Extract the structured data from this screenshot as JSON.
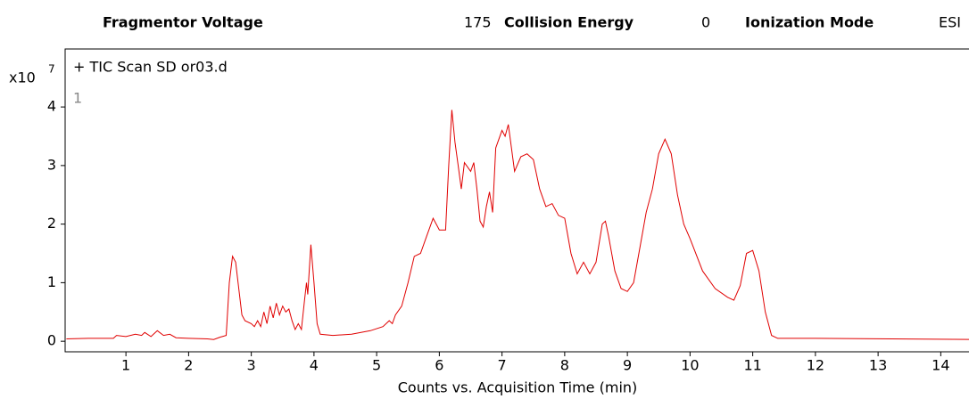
{
  "header": {
    "fields": [
      {
        "label": "Fragmentor Voltage",
        "value": "175"
      },
      {
        "label": "Collision Energy",
        "value": "0"
      },
      {
        "label": "Ionization Mode",
        "value": "ESI"
      }
    ]
  },
  "chart_data": {
    "type": "line",
    "title": "+ TIC Scan SD or03.d",
    "y_scale_label": "x10",
    "y_scale_exponent": "7",
    "panel_label": "1",
    "x_label": "Counts vs. Acquisition Time (min)",
    "xlim": [
      0.03,
      14.55
    ],
    "ylim": [
      -0.18,
      4.99
    ],
    "xticks": [
      1,
      2,
      3,
      4,
      5,
      6,
      7,
      8,
      9,
      10,
      11,
      12,
      13,
      14
    ],
    "yticks": [
      0,
      1,
      2,
      3,
      4
    ],
    "series": [
      {
        "name": "TIC",
        "color": "#e00000",
        "x": [
          0.05,
          0.4,
          0.8,
          0.85,
          1.0,
          1.15,
          1.25,
          1.3,
          1.4,
          1.5,
          1.6,
          1.7,
          1.8,
          2.0,
          2.3,
          2.4,
          2.5,
          2.6,
          2.65,
          2.7,
          2.75,
          2.8,
          2.85,
          2.9,
          3.0,
          3.05,
          3.1,
          3.15,
          3.2,
          3.25,
          3.3,
          3.35,
          3.4,
          3.45,
          3.5,
          3.55,
          3.6,
          3.65,
          3.7,
          3.75,
          3.8,
          3.85,
          3.88,
          3.9,
          3.95,
          4.0,
          4.05,
          4.1,
          4.3,
          4.6,
          4.9,
          5.1,
          5.2,
          5.25,
          5.3,
          5.4,
          5.5,
          5.6,
          5.7,
          5.8,
          5.9,
          6.0,
          6.1,
          6.15,
          6.2,
          6.25,
          6.3,
          6.35,
          6.4,
          6.5,
          6.55,
          6.6,
          6.65,
          6.7,
          6.75,
          6.8,
          6.85,
          6.9,
          7.0,
          7.05,
          7.1,
          7.15,
          7.2,
          7.3,
          7.4,
          7.5,
          7.6,
          7.7,
          7.8,
          7.9,
          8.0,
          8.1,
          8.2,
          8.3,
          8.4,
          8.5,
          8.6,
          8.65,
          8.7,
          8.8,
          8.9,
          9.0,
          9.1,
          9.2,
          9.3,
          9.4,
          9.5,
          9.6,
          9.7,
          9.8,
          9.9,
          10.0,
          10.2,
          10.4,
          10.6,
          10.7,
          10.8,
          10.9,
          11.0,
          11.1,
          11.2,
          11.3,
          11.4,
          12.0,
          14.5
        ],
        "values": [
          0.04,
          0.05,
          0.05,
          0.1,
          0.08,
          0.12,
          0.1,
          0.15,
          0.08,
          0.18,
          0.1,
          0.12,
          0.06,
          0.05,
          0.04,
          0.03,
          0.07,
          0.1,
          1.0,
          1.45,
          1.35,
          0.9,
          0.45,
          0.35,
          0.3,
          0.25,
          0.35,
          0.25,
          0.5,
          0.3,
          0.6,
          0.4,
          0.65,
          0.45,
          0.6,
          0.5,
          0.55,
          0.35,
          0.2,
          0.3,
          0.2,
          0.7,
          1.0,
          0.8,
          1.65,
          1.0,
          0.3,
          0.12,
          0.1,
          0.12,
          0.18,
          0.25,
          0.35,
          0.3,
          0.45,
          0.6,
          1.0,
          1.45,
          1.5,
          1.8,
          2.1,
          1.9,
          1.9,
          3.0,
          3.95,
          3.4,
          3.0,
          2.6,
          3.05,
          2.9,
          3.05,
          2.6,
          2.05,
          1.95,
          2.3,
          2.55,
          2.2,
          3.3,
          3.6,
          3.5,
          3.7,
          3.3,
          2.9,
          3.15,
          3.2,
          3.1,
          2.6,
          2.3,
          2.35,
          2.15,
          2.1,
          1.5,
          1.15,
          1.35,
          1.15,
          1.35,
          2.0,
          2.05,
          1.8,
          1.2,
          0.9,
          0.85,
          1.0,
          1.6,
          2.2,
          2.6,
          3.2,
          3.45,
          3.2,
          2.5,
          2.0,
          1.75,
          1.2,
          0.9,
          0.75,
          0.7,
          0.95,
          1.5,
          1.55,
          1.2,
          0.5,
          0.1,
          0.05,
          0.05,
          0.03
        ]
      }
    ]
  }
}
